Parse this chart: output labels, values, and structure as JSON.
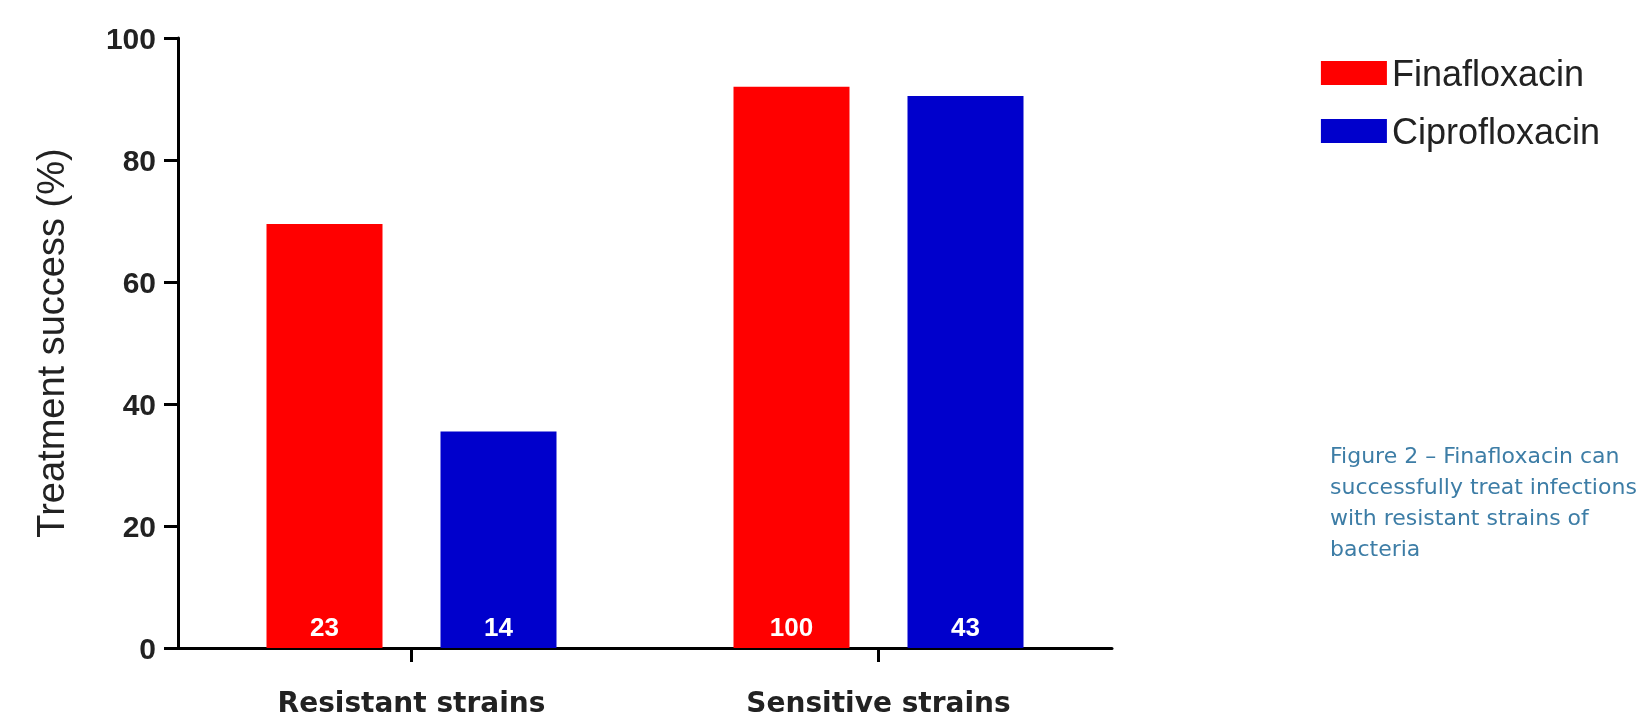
{
  "chart_data": {
    "type": "bar",
    "ylabel": "Treatment success (%)",
    "categories": [
      "Resistant strains",
      "Sensitive strains"
    ],
    "series": [
      {
        "name": "Finafloxacin",
        "color": "#ff0000",
        "values": [
          69.5,
          92
        ]
      },
      {
        "name": "Ciprofloxacin",
        "color": "#0000cc",
        "values": [
          35.5,
          90.5
        ]
      }
    ],
    "ylim": [
      0,
      100
    ],
    "yticks": [
      0,
      20,
      40,
      60,
      80,
      100
    ],
    "grid": false,
    "legend": "top right",
    "annotations": [
      "23",
      "14",
      "100",
      "43",
      "Figure 2 – Finafloxacin can successfully treat infections with resistant strains of bacteria"
    ]
  }
}
